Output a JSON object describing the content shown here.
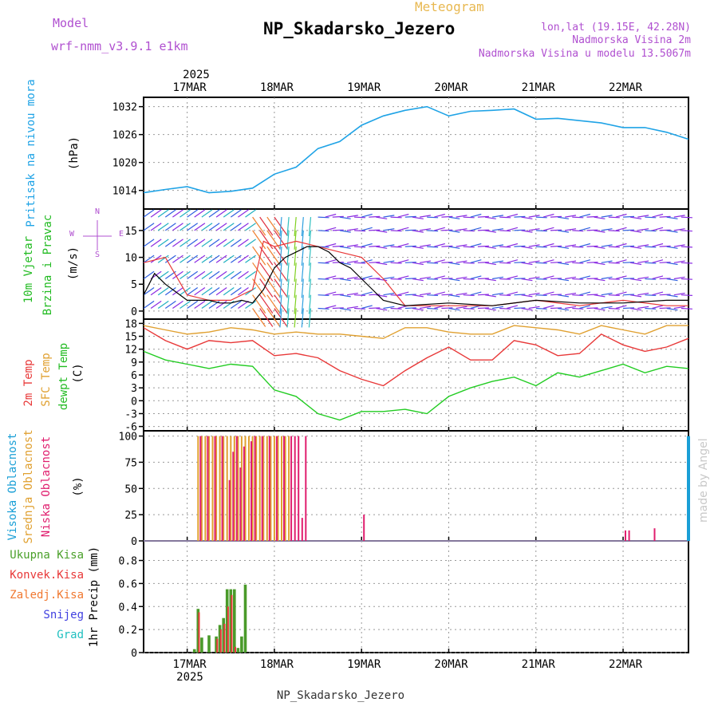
{
  "header": {
    "model_label": "Model",
    "model_value": "wrf-nmm_v3.9.1  e1km",
    "meteogram": "Meteogram",
    "station": "NP_Skadarsko_Jezero",
    "lonlat": "lon,lat (19.15E, 42.28N)",
    "elevation": "Nadmorska Visina 2m",
    "model_elevation": "Nadmorska Visina u modelu 13.5067m",
    "footer_station": "NP_Skadarsko_Jezero",
    "year": "2025",
    "credit": "made by Angel"
  },
  "colors": {
    "pressure": "#1fa3e6",
    "temp2m": "#e83838",
    "sfc": "#e0a030",
    "dewpt": "#22cc22",
    "high_cloud": "#1a9fd6",
    "mid_cloud": "#e0a030",
    "low_cloud": "#e01e6e",
    "wind_purple": "#8a2be2",
    "precip_total": "#4a9a2a",
    "precip_conv": "#e83838",
    "precip_ice": "#f07830",
    "snow": "#4040e0",
    "graupel": "#20c0c0",
    "model_label": "#b050d0"
  },
  "chart_data": [
    {
      "type": "line",
      "panel": "pressure",
      "title": "",
      "ylabel": [
        "Pritisak na nivou mora",
        "(hPa)"
      ],
      "ylim": [
        1010,
        1034
      ],
      "yticks": [
        "1014",
        "1020",
        "1026",
        "1032"
      ],
      "x_labels": [
        "17MAR",
        "18MAR",
        "19MAR",
        "20MAR",
        "21MAR",
        "22MAR"
      ],
      "x_start": "2025-03-16T12:00",
      "x_end": "2025-03-22T18:00",
      "series": [
        {
          "x": [
            "2025-03-16T12:00",
            "2025-03-16T18:00",
            "2025-03-17T00:00",
            "2025-03-17T06:00",
            "2025-03-17T12:00",
            "2025-03-17T18:00",
            "2025-03-18T00:00",
            "2025-03-18T06:00",
            "2025-03-18T12:00",
            "2025-03-18T18:00",
            "2025-03-19T00:00",
            "2025-03-19T06:00",
            "2025-03-19T12:00",
            "2025-03-19T18:00",
            "2025-03-20T00:00",
            "2025-03-20T06:00",
            "2025-03-20T12:00",
            "2025-03-20T18:00",
            "2025-03-21T00:00",
            "2025-03-21T06:00",
            "2025-03-21T12:00",
            "2025-03-21T18:00",
            "2025-03-22T00:00",
            "2025-03-22T06:00",
            "2025-03-22T12:00",
            "2025-03-22T18:00"
          ],
          "values": [
            1013.5,
            1014.2,
            1014.8,
            1013.5,
            1013.8,
            1014.5,
            1017.5,
            1019.0,
            1023.0,
            1024.5,
            1028.0,
            1030.0,
            1031.2,
            1032.0,
            1030.0,
            1031.0,
            1031.2,
            1031.5,
            1029.3,
            1029.5,
            1029.0,
            1028.5,
            1027.5,
            1027.5,
            1026.5,
            1025.0
          ]
        }
      ]
    },
    {
      "type": "line",
      "panel": "wind",
      "ylabel": [
        "10m Vjetar",
        "Brzina i Pravac",
        "(m/s)"
      ],
      "ylim": [
        -1.5,
        19
      ],
      "yticks": [
        "0",
        "5",
        "10",
        "15"
      ],
      "compass": [
        "N",
        "E",
        "S",
        "W"
      ],
      "series": [
        {
          "name": "speed",
          "x": [
            "2025-03-16T12:00",
            "2025-03-16T15:00",
            "2025-03-16T18:00",
            "2025-03-17T00:00",
            "2025-03-17T06:00",
            "2025-03-17T09:00",
            "2025-03-17T12:00",
            "2025-03-17T15:00",
            "2025-03-17T18:00",
            "2025-03-17T21:00",
            "2025-03-18T00:00",
            "2025-03-18T03:00",
            "2025-03-18T06:00",
            "2025-03-18T09:00",
            "2025-03-18T12:00",
            "2025-03-18T15:00",
            "2025-03-18T18:00",
            "2025-03-18T21:00",
            "2025-03-19T00:00",
            "2025-03-19T03:00",
            "2025-03-19T06:00",
            "2025-03-19T12:00",
            "2025-03-20T00:00",
            "2025-03-20T12:00",
            "2025-03-21T00:00",
            "2025-03-21T12:00",
            "2025-03-22T00:00",
            "2025-03-22T12:00",
            "2025-03-22T18:00"
          ],
          "values": [
            3,
            7,
            5,
            2,
            2,
            1.5,
            1.5,
            2,
            1.5,
            4,
            8,
            10,
            11,
            12,
            12,
            11,
            9,
            8,
            6,
            4,
            2,
            1,
            1.5,
            1,
            2,
            1.5,
            1.5,
            2,
            2
          ]
        },
        {
          "name": "gust",
          "x": [
            "2025-03-16T12:00",
            "2025-03-16T18:00",
            "2025-03-17T00:00",
            "2025-03-17T06:00",
            "2025-03-17T12:00",
            "2025-03-17T18:00",
            "2025-03-17T21:00",
            "2025-03-18T00:00",
            "2025-03-18T06:00",
            "2025-03-18T12:00",
            "2025-03-18T18:00",
            "2025-03-19T00:00",
            "2025-03-19T06:00",
            "2025-03-19T12:00",
            "2025-03-20T00:00",
            "2025-03-20T12:00",
            "2025-03-21T00:00",
            "2025-03-21T12:00",
            "2025-03-22T00:00",
            "2025-03-22T12:00",
            "2025-03-22T18:00"
          ],
          "values": [
            9,
            10,
            3,
            2,
            2,
            4,
            13,
            12,
            13,
            12,
            11,
            10,
            6,
            1,
            1,
            1,
            2,
            1,
            2,
            1,
            1
          ]
        }
      ]
    },
    {
      "type": "line",
      "panel": "temperature",
      "ylabel": [
        "2m Temp",
        "SFC Temp",
        "dewpt Temp",
        "(C)"
      ],
      "ylim": [
        -7,
        19
      ],
      "yticks": [
        "-6",
        "-3",
        "0",
        "3",
        "6",
        "9",
        "12",
        "15",
        "18"
      ],
      "series": [
        {
          "name": "SFC Temp",
          "x": [
            "2025-03-16T12:00",
            "2025-03-16T18:00",
            "2025-03-17T00:00",
            "2025-03-17T06:00",
            "2025-03-17T12:00",
            "2025-03-17T18:00",
            "2025-03-18T00:00",
            "2025-03-18T06:00",
            "2025-03-18T12:00",
            "2025-03-18T18:00",
            "2025-03-19T00:00",
            "2025-03-19T06:00",
            "2025-03-19T12:00",
            "2025-03-19T18:00",
            "2025-03-20T00:00",
            "2025-03-20T06:00",
            "2025-03-20T12:00",
            "2025-03-20T18:00",
            "2025-03-21T00:00",
            "2025-03-21T06:00",
            "2025-03-21T12:00",
            "2025-03-21T18:00",
            "2025-03-22T00:00",
            "2025-03-22T06:00",
            "2025-03-22T12:00",
            "2025-03-22T18:00"
          ],
          "values": [
            17.5,
            16.5,
            15.5,
            16,
            17,
            16.5,
            15.5,
            16,
            15.5,
            15.5,
            15,
            14.5,
            17,
            17,
            16,
            15.5,
            15.5,
            17.5,
            17,
            16.5,
            15.5,
            17.5,
            16.5,
            15.5,
            17.5,
            17.5
          ]
        },
        {
          "name": "2m Temp",
          "x": [
            "2025-03-16T12:00",
            "2025-03-16T18:00",
            "2025-03-17T00:00",
            "2025-03-17T06:00",
            "2025-03-17T12:00",
            "2025-03-17T18:00",
            "2025-03-18T00:00",
            "2025-03-18T06:00",
            "2025-03-18T12:00",
            "2025-03-18T18:00",
            "2025-03-19T00:00",
            "2025-03-19T06:00",
            "2025-03-19T12:00",
            "2025-03-19T18:00",
            "2025-03-20T00:00",
            "2025-03-20T06:00",
            "2025-03-20T12:00",
            "2025-03-20T18:00",
            "2025-03-21T00:00",
            "2025-03-21T06:00",
            "2025-03-21T12:00",
            "2025-03-21T18:00",
            "2025-03-22T00:00",
            "2025-03-22T06:00",
            "2025-03-22T12:00",
            "2025-03-22T18:00"
          ],
          "values": [
            17,
            14,
            12,
            14,
            13.5,
            14,
            10.5,
            11,
            10,
            7,
            5,
            3.5,
            7,
            10,
            12.5,
            9.5,
            9.5,
            14,
            13,
            10.5,
            11,
            15.5,
            13,
            11.5,
            12.5,
            14.5
          ]
        },
        {
          "name": "dewpt Temp",
          "x": [
            "2025-03-16T12:00",
            "2025-03-16T18:00",
            "2025-03-17T00:00",
            "2025-03-17T06:00",
            "2025-03-17T12:00",
            "2025-03-17T18:00",
            "2025-03-18T00:00",
            "2025-03-18T06:00",
            "2025-03-18T12:00",
            "2025-03-18T18:00",
            "2025-03-19T00:00",
            "2025-03-19T06:00",
            "2025-03-19T12:00",
            "2025-03-19T18:00",
            "2025-03-20T00:00",
            "2025-03-20T06:00",
            "2025-03-20T12:00",
            "2025-03-20T18:00",
            "2025-03-21T00:00",
            "2025-03-21T06:00",
            "2025-03-21T12:00",
            "2025-03-21T18:00",
            "2025-03-22T00:00",
            "2025-03-22T06:00",
            "2025-03-22T12:00",
            "2025-03-22T18:00"
          ],
          "values": [
            11.5,
            9.5,
            8.5,
            7.5,
            8.5,
            8,
            2.5,
            1,
            -3,
            -4.5,
            -2.5,
            -2.5,
            -2,
            -3,
            1,
            3,
            4.5,
            5.5,
            3.5,
            6.5,
            5.5,
            7,
            8.5,
            6.5,
            8,
            7.5
          ]
        }
      ]
    },
    {
      "type": "bar",
      "panel": "cloud",
      "ylabel": [
        "Visoka Oblacnost",
        "Srednja Oblacnost",
        "Niska Oblacnost",
        "(%)"
      ],
      "ylim": [
        0,
        105
      ],
      "yticks": [
        "0",
        "25",
        "50",
        "75",
        "100"
      ],
      "series": [
        {
          "name": "Srednja Oblacnost",
          "x": [
            "2025-03-17T03:00",
            "2025-03-17T04:00",
            "2025-03-17T05:00",
            "2025-03-17T06:00",
            "2025-03-17T07:00",
            "2025-03-17T08:00",
            "2025-03-17T09:00",
            "2025-03-17T10:00",
            "2025-03-17T11:00",
            "2025-03-17T12:00",
            "2025-03-17T13:00",
            "2025-03-17T14:00",
            "2025-03-17T15:00",
            "2025-03-17T16:00",
            "2025-03-17T17:00",
            "2025-03-17T18:00",
            "2025-03-17T19:00",
            "2025-03-17T20:00",
            "2025-03-17T21:00",
            "2025-03-17T22:00",
            "2025-03-17T23:00",
            "2025-03-18T00:00",
            "2025-03-18T01:00",
            "2025-03-18T02:00",
            "2025-03-18T03:00",
            "2025-03-18T04:00"
          ],
          "values": [
            100,
            100,
            100,
            100,
            100,
            100,
            100,
            100,
            100,
            100,
            100,
            100,
            100,
            100,
            100,
            100,
            100,
            100,
            100,
            100,
            100,
            100,
            100,
            100,
            100,
            100
          ]
        },
        {
          "name": "Niska Oblacnost",
          "x": [
            "2025-03-17T03:00",
            "2025-03-17T05:00",
            "2025-03-17T07:00",
            "2025-03-17T09:00",
            "2025-03-17T11:00",
            "2025-03-17T12:00",
            "2025-03-17T13:00",
            "2025-03-17T14:00",
            "2025-03-17T15:00",
            "2025-03-17T17:00",
            "2025-03-17T18:00",
            "2025-03-17T20:00",
            "2025-03-17T22:00",
            "2025-03-18T00:00",
            "2025-03-18T02:00",
            "2025-03-18T04:00",
            "2025-03-18T05:00",
            "2025-03-18T06:00",
            "2025-03-18T07:00",
            "2025-03-18T08:00",
            "2025-03-19T00:00",
            "2025-03-22T00:00",
            "2025-03-22T01:00",
            "2025-03-22T08:00"
          ],
          "values": [
            100,
            100,
            100,
            100,
            58,
            85,
            100,
            70,
            90,
            95,
            100,
            100,
            100,
            100,
            100,
            100,
            100,
            100,
            22,
            100,
            25,
            10,
            10,
            12
          ]
        },
        {
          "name": "Visoka Oblacnost",
          "x": [
            "2025-03-22T18:00"
          ],
          "values": [
            100
          ]
        }
      ]
    },
    {
      "type": "bar",
      "panel": "precip",
      "ylabel": [
        "1hr Precip (mm)"
      ],
      "legend": [
        "Ukupna Kisa",
        "Konvek.Kisa",
        "Zaledj.Kisa",
        "Snijeg",
        "Grad"
      ],
      "ylim": [
        0,
        0.97
      ],
      "yticks": [
        "0",
        "0.2",
        "0.4",
        "0.6",
        "0.8"
      ],
      "series": [
        {
          "name": "Ukupna Kisa",
          "x": [
            "2025-03-17T02:00",
            "2025-03-17T03:00",
            "2025-03-17T04:00",
            "2025-03-17T06:00",
            "2025-03-17T08:00",
            "2025-03-17T09:00",
            "2025-03-17T10:00",
            "2025-03-17T11:00",
            "2025-03-17T12:00",
            "2025-03-17T13:00",
            "2025-03-17T14:00",
            "2025-03-17T15:00",
            "2025-03-17T16:00",
            "2025-03-17T17:00"
          ],
          "values": [
            0.03,
            0.38,
            0.13,
            0.15,
            0.14,
            0.24,
            0.3,
            0.55,
            0.55,
            0.55,
            0.04,
            0.14,
            0.59,
            0.0
          ]
        },
        {
          "name": "Konvek.Kisa",
          "x": [
            "2025-03-17T03:00",
            "2025-03-17T08:00",
            "2025-03-17T09:00",
            "2025-03-17T10:00",
            "2025-03-17T11:00",
            "2025-03-17T12:00",
            "2025-03-17T13:00"
          ],
          "values": [
            0.35,
            0.12,
            0.2,
            0.25,
            0.4,
            0.5,
            0.05
          ]
        }
      ]
    }
  ]
}
